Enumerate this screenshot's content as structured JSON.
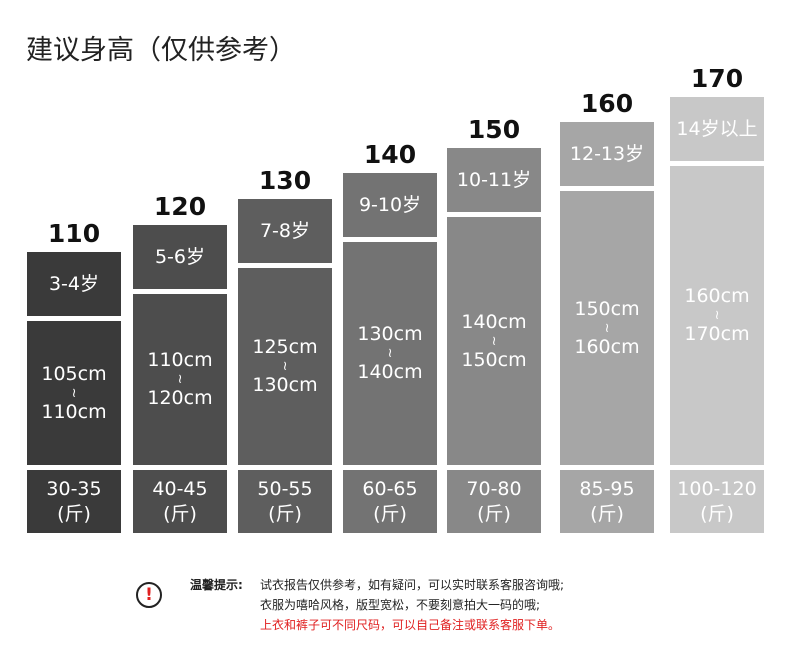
{
  "title": "建议身高（仅供参考）",
  "columns": [
    {
      "size": "110",
      "age": "3-4岁",
      "height": [
        "105cm",
        "≀",
        "110cm"
      ],
      "weight": "30-35",
      "unit": "(斤)"
    },
    {
      "size": "120",
      "age": "5-6岁",
      "height": [
        "110cm",
        "≀",
        "120cm"
      ],
      "weight": "40-45",
      "unit": "(斤)"
    },
    {
      "size": "130",
      "age": "7-8岁",
      "height": [
        "125cm",
        "≀",
        "130cm"
      ],
      "weight": "50-55",
      "unit": "(斤)"
    },
    {
      "size": "140",
      "age": "9-10岁",
      "height": [
        "130cm",
        "≀",
        "140cm"
      ],
      "weight": "60-65",
      "unit": "(斤)"
    },
    {
      "size": "150",
      "age": "10-11岁",
      "height": [
        "140cm",
        "≀",
        "150cm"
      ],
      "weight": "70-80",
      "unit": "(斤)"
    },
    {
      "size": "160",
      "age": "12-13岁",
      "height": [
        "150cm",
        "≀",
        "160cm"
      ],
      "weight": "85-95",
      "unit": "(斤)"
    },
    {
      "size": "170",
      "age": "14岁以上",
      "height": [
        "160cm",
        "≀",
        "170cm"
      ],
      "weight": "100-120",
      "unit": "(斤)"
    }
  ],
  "notice": {
    "icon": "!",
    "label": "温馨提示:",
    "lines": [
      "试衣报告仅供参考，如有疑问，可以实时联系客服咨询哦;",
      "衣服为嘻哈风格，版型宽松，不要刻意拍大一码的哦;",
      "上衣和裤子可不同尺码，可以自己备注或联系客服下单。"
    ]
  }
}
